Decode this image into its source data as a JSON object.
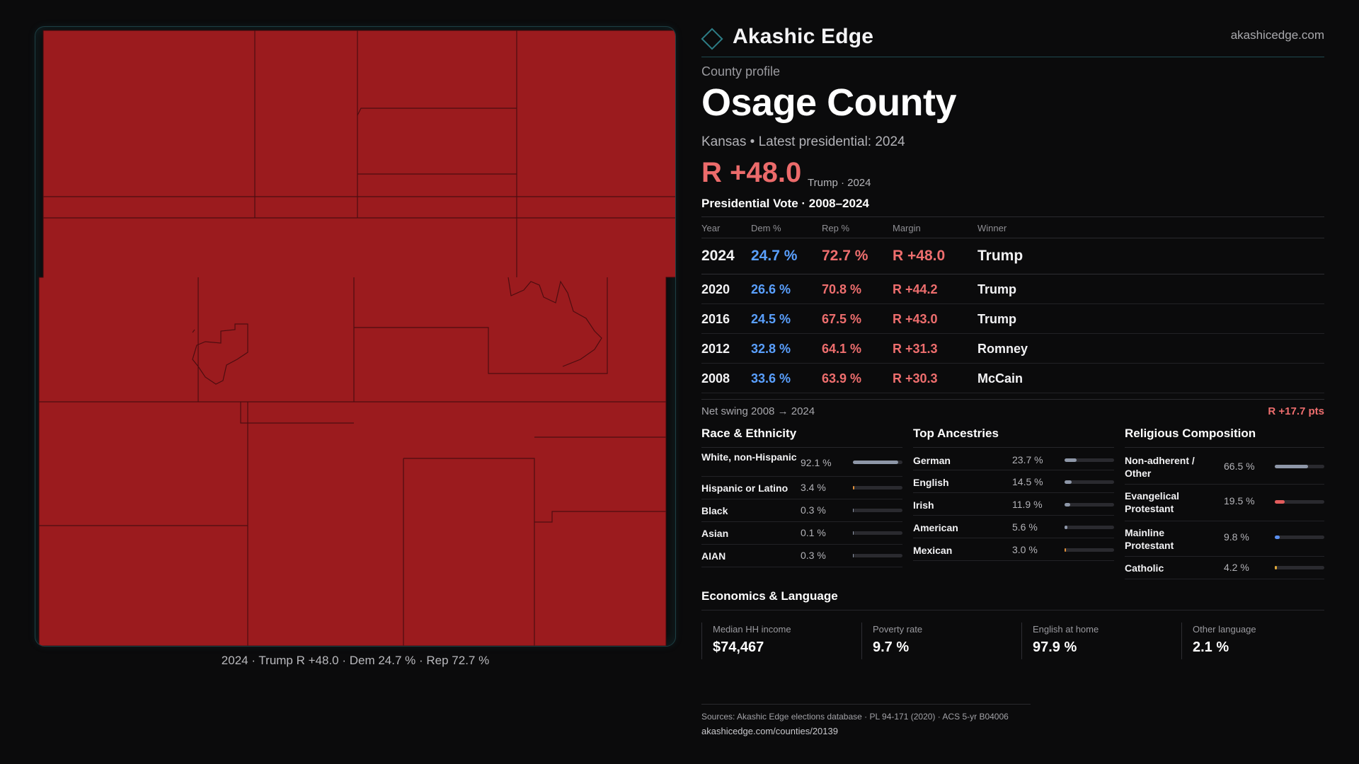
{
  "brand": {
    "name": "Akashic Edge",
    "url": "akashicedge.com",
    "logo_icon": "diamond-logo-icon"
  },
  "profile": {
    "eyebrow": "County profile",
    "county": "Osage County",
    "subtitle": "Kansas • Latest presidential: 2024",
    "margin": "R +48.0",
    "margin_note": "Trump · 2024"
  },
  "map": {
    "fill_color": "#9b1b1e",
    "caption": "2024 · Trump R +48.0 · Dem 24.7 % · Rep 72.7 %"
  },
  "vote_table": {
    "title": "Presidential Vote · 2008–2024",
    "headers": {
      "year": "Year",
      "dem": "Dem %",
      "rep": "Rep %",
      "margin": "Margin",
      "winner": "Winner"
    },
    "rows": [
      {
        "year": "2024",
        "dem": "24.7 %",
        "rep": "72.7 %",
        "margin": "R +48.0",
        "winner": "Trump"
      },
      {
        "year": "2020",
        "dem": "26.6 %",
        "rep": "70.8 %",
        "margin": "R +44.2",
        "winner": "Trump"
      },
      {
        "year": "2016",
        "dem": "24.5 %",
        "rep": "67.5 %",
        "margin": "R +43.0",
        "winner": "Trump"
      },
      {
        "year": "2012",
        "dem": "32.8 %",
        "rep": "64.1 %",
        "margin": "R +31.3",
        "winner": "Romney"
      },
      {
        "year": "2008",
        "dem": "33.6 %",
        "rep": "63.9 %",
        "margin": "R +30.3",
        "winner": "McCain"
      }
    ],
    "swing_label": "Net swing 2008 → 2024",
    "swing_value": "R +17.7 pts"
  },
  "race": {
    "title": "Race & Ethnicity",
    "items": [
      {
        "label": "White, non-Hispanic",
        "value": "92.1 %",
        "pct": 92.1,
        "color": "#8e97a8"
      },
      {
        "label": "Hispanic or Latino",
        "value": "3.4 %",
        "pct": 3.4,
        "color": "#e0903a"
      },
      {
        "label": "Black",
        "value": "0.3 %",
        "pct": 0.3,
        "color": "#8e97a8"
      },
      {
        "label": "Asian",
        "value": "0.1 %",
        "pct": 0.1,
        "color": "#8e97a8"
      },
      {
        "label": "AIAN",
        "value": "0.3 %",
        "pct": 0.3,
        "color": "#8e97a8"
      }
    ]
  },
  "ancestry": {
    "title": "Top Ancestries",
    "items": [
      {
        "label": "German",
        "value": "23.7 %",
        "pct": 23.7,
        "color": "#8e97a8"
      },
      {
        "label": "English",
        "value": "14.5 %",
        "pct": 14.5,
        "color": "#8e97a8"
      },
      {
        "label": "Irish",
        "value": "11.9 %",
        "pct": 11.9,
        "color": "#8e97a8"
      },
      {
        "label": "American",
        "value": "5.6 %",
        "pct": 5.6,
        "color": "#8e97a8"
      },
      {
        "label": "Mexican",
        "value": "3.0 %",
        "pct": 3.0,
        "color": "#e0903a"
      }
    ]
  },
  "religion": {
    "title": "Religious Composition",
    "items": [
      {
        "label": "Non-adherent / Other",
        "value": "66.5 %",
        "pct": 66.5,
        "color": "#8e97a8"
      },
      {
        "label": "Evangelical Protestant",
        "value": "19.5 %",
        "pct": 19.5,
        "color": "#e35c5c"
      },
      {
        "label": "Mainline Protestant",
        "value": "9.8 %",
        "pct": 9.8,
        "color": "#5a8ff0"
      },
      {
        "label": "Catholic",
        "value": "4.2 %",
        "pct": 4.2,
        "color": "#e0a93a"
      }
    ]
  },
  "economics": {
    "title": "Economics & Language",
    "items": [
      {
        "label": "Median HH income",
        "value": "$74,467"
      },
      {
        "label": "Poverty rate",
        "value": "9.7 %"
      },
      {
        "label": "English at home",
        "value": "97.9 %"
      },
      {
        "label": "Other language",
        "value": "2.1 %"
      }
    ]
  },
  "sources": {
    "text": "Sources: Akashic Edge elections database · PL 94-171 (2020) · ACS 5-yr B04006",
    "url": "akashicedge.com/counties/20139"
  }
}
